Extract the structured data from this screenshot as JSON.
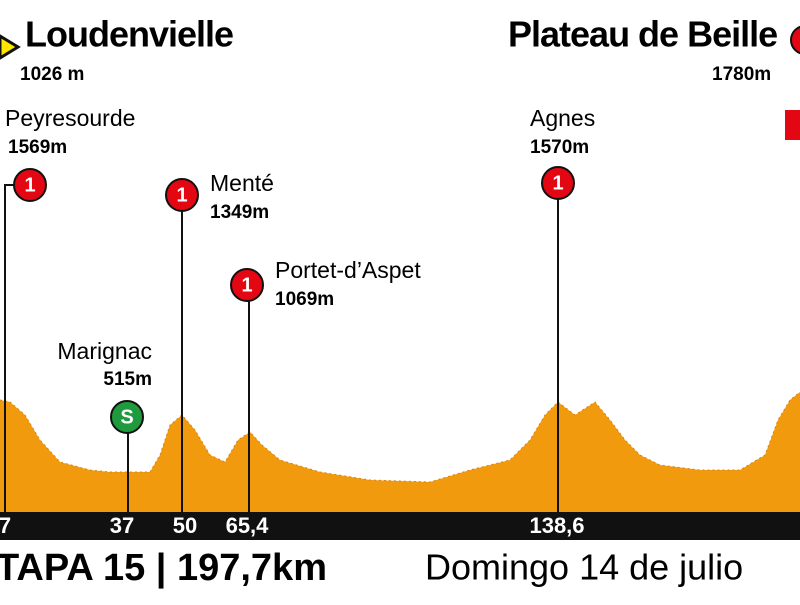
{
  "start": {
    "name": "Loudenvielle",
    "altitude": "1026 m"
  },
  "finish": {
    "name": "Plateau de Beille",
    "altitude": "1780m"
  },
  "climbs": [
    {
      "name": "Peyresourde",
      "altitude": "1569m",
      "category": "1",
      "km": "7"
    },
    {
      "name": "Menté",
      "altitude": "1349m",
      "category": "1",
      "km": "50"
    },
    {
      "name": "Portet-d’Aspet",
      "altitude": "1069m",
      "category": "1",
      "km": "65,4"
    },
    {
      "name": "Agnes",
      "altitude": "1570m",
      "category": "1",
      "km": "138,6"
    }
  ],
  "sprint": {
    "name": "Marignac",
    "altitude": "515m",
    "symbol": "S",
    "km": "37"
  },
  "footer": {
    "stage": "TAPA 15 | 197,7km",
    "date": "Domingo 14 de julio"
  }
}
